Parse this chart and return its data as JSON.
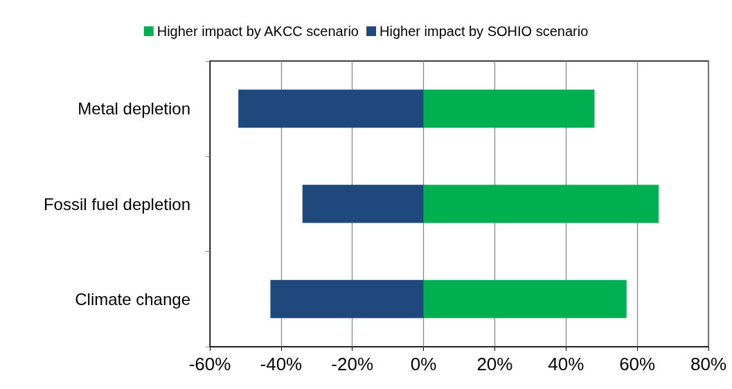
{
  "chart_data": {
    "type": "bar",
    "orientation": "horizontal",
    "stacked": true,
    "categories": [
      "Metal depletion",
      "Fossil fuel depletion",
      "Climate change"
    ],
    "series": [
      {
        "name": "Higher impact by AKCC scenario",
        "color": "#00b050",
        "values": [
          48,
          66,
          57
        ]
      },
      {
        "name": "Higher impact by SOHIO scenario",
        "color": "#1f497d",
        "values": [
          -52,
          -34,
          -43
        ]
      }
    ],
    "xlim": [
      -60,
      80
    ],
    "xticks": [
      {
        "value": -60,
        "label": "-60%"
      },
      {
        "value": -40,
        "label": "-40%"
      },
      {
        "value": -20,
        "label": "-20%"
      },
      {
        "value": 0,
        "label": "0%"
      },
      {
        "value": 20,
        "label": "20%"
      },
      {
        "value": 40,
        "label": "40%"
      },
      {
        "value": 60,
        "label": "60%"
      },
      {
        "value": 80,
        "label": "80%"
      }
    ],
    "grid": "x",
    "legend": "top"
  }
}
